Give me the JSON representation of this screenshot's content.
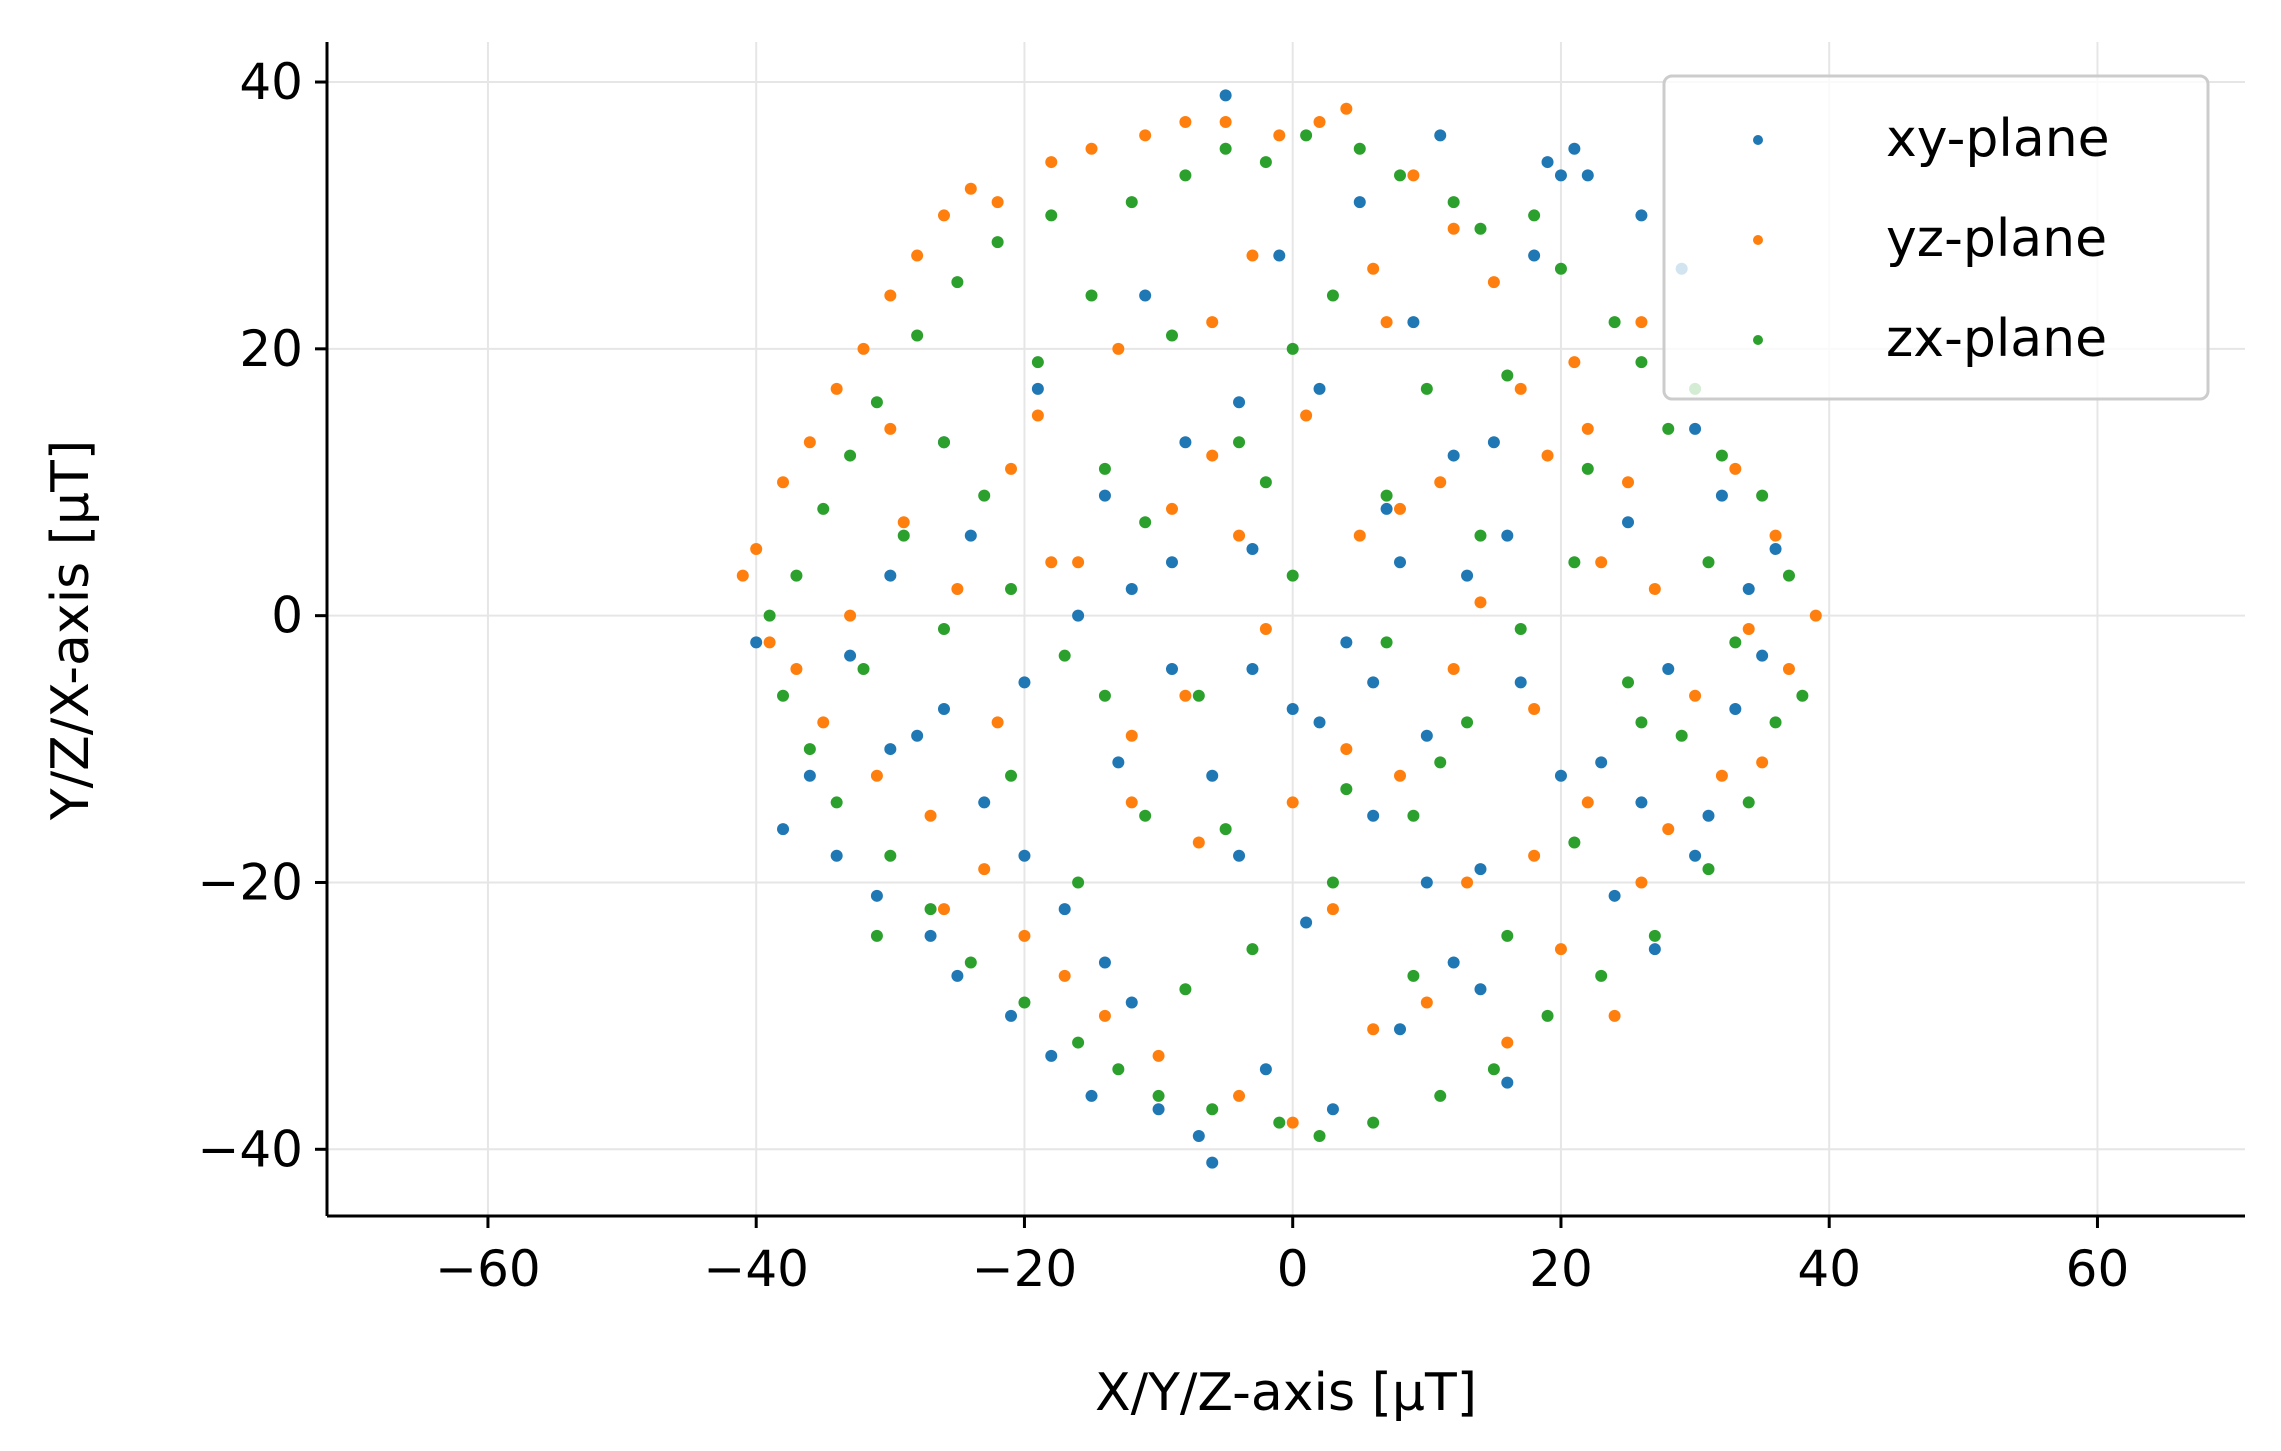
{
  "chart_data": {
    "type": "scatter",
    "title": "",
    "xlabel": "X/Y/Z-axis [μT]",
    "ylabel": "Y/Z/X-axis [μT]",
    "xlim": [
      -72,
      71
    ],
    "ylim": [
      -45,
      43
    ],
    "xticks": [
      -60,
      -40,
      -20,
      0,
      20,
      40,
      60
    ],
    "yticks": [
      -40,
      -20,
      0,
      20,
      40
    ],
    "xtick_labels": [
      "−60",
      "−40",
      "−20",
      "0",
      "20",
      "40",
      "60"
    ],
    "ytick_labels": [
      "−40",
      "−20",
      "0",
      "20",
      "40"
    ],
    "grid": true,
    "legend_position": "top-right",
    "series": [
      {
        "name": "xy-plane",
        "color": "#1f77b4",
        "points": [
          [
            -40,
            -2
          ],
          [
            -38,
            -16
          ],
          [
            -36,
            -12
          ],
          [
            -34,
            -18
          ],
          [
            -33,
            -3
          ],
          [
            -31,
            -21
          ],
          [
            -30,
            3
          ],
          [
            -28,
            -9
          ],
          [
            -27,
            -24
          ],
          [
            -26,
            13
          ],
          [
            -25,
            -27
          ],
          [
            -24,
            6
          ],
          [
            -23,
            -14
          ],
          [
            -21,
            -30
          ],
          [
            -20,
            -5
          ],
          [
            -19,
            17
          ],
          [
            -18,
            -33
          ],
          [
            -17,
            -22
          ],
          [
            -16,
            0
          ],
          [
            -15,
            -36
          ],
          [
            -14,
            9
          ],
          [
            -13,
            -11
          ],
          [
            -12,
            -29
          ],
          [
            -11,
            24
          ],
          [
            -10,
            -37
          ],
          [
            -9,
            -4
          ],
          [
            -8,
            13
          ],
          [
            -7,
            -39
          ],
          [
            -6,
            -41
          ],
          [
            -5,
            39
          ],
          [
            -4,
            -18
          ],
          [
            -3,
            5
          ],
          [
            -2,
            -34
          ],
          [
            -1,
            27
          ],
          [
            0,
            -7
          ],
          [
            1,
            -23
          ],
          [
            2,
            17
          ],
          [
            3,
            -37
          ],
          [
            4,
            -2
          ],
          [
            5,
            31
          ],
          [
            6,
            -15
          ],
          [
            7,
            8
          ],
          [
            8,
            -31
          ],
          [
            9,
            22
          ],
          [
            10,
            -9
          ],
          [
            11,
            36
          ],
          [
            12,
            -26
          ],
          [
            13,
            3
          ],
          [
            14,
            -19
          ],
          [
            15,
            13
          ],
          [
            16,
            -35
          ],
          [
            17,
            -5
          ],
          [
            18,
            27
          ],
          [
            19,
            34
          ],
          [
            20,
            33
          ],
          [
            21,
            35
          ],
          [
            22,
            33
          ],
          [
            23,
            -11
          ],
          [
            24,
            -21
          ],
          [
            25,
            7
          ],
          [
            26,
            30
          ],
          [
            27,
            -25
          ],
          [
            28,
            -4
          ],
          [
            29,
            26
          ],
          [
            30,
            14
          ],
          [
            31,
            -15
          ],
          [
            32,
            9
          ],
          [
            33,
            -7
          ],
          [
            34,
            2
          ],
          [
            35,
            -3
          ],
          [
            36,
            5
          ],
          [
            -6,
            -12
          ],
          [
            -3,
            -4
          ],
          [
            2,
            -8
          ],
          [
            6,
            -5
          ],
          [
            -9,
            4
          ],
          [
            10,
            -20
          ],
          [
            -14,
            -26
          ],
          [
            14,
            -28
          ],
          [
            -20,
            -18
          ],
          [
            20,
            -12
          ],
          [
            -26,
            -7
          ],
          [
            26,
            -14
          ],
          [
            -30,
            -10
          ],
          [
            30,
            -18
          ],
          [
            8,
            4
          ],
          [
            -4,
            16
          ],
          [
            12,
            12
          ],
          [
            -12,
            2
          ],
          [
            16,
            6
          ]
        ]
      },
      {
        "name": "yz-plane",
        "color": "#ff7f0e",
        "points": [
          [
            -41,
            3
          ],
          [
            -40,
            5
          ],
          [
            -39,
            -2
          ],
          [
            -38,
            10
          ],
          [
            -37,
            -4
          ],
          [
            -36,
            13
          ],
          [
            -35,
            -8
          ],
          [
            -34,
            17
          ],
          [
            -33,
            0
          ],
          [
            -32,
            20
          ],
          [
            -31,
            -12
          ],
          [
            -30,
            24
          ],
          [
            -29,
            7
          ],
          [
            -28,
            27
          ],
          [
            -27,
            -15
          ],
          [
            -26,
            30
          ],
          [
            -25,
            2
          ],
          [
            -24,
            32
          ],
          [
            -23,
            -19
          ],
          [
            -22,
            31
          ],
          [
            -21,
            11
          ],
          [
            -20,
            -24
          ],
          [
            -19,
            15
          ],
          [
            -18,
            34
          ],
          [
            -17,
            -27
          ],
          [
            -16,
            4
          ],
          [
            -15,
            35
          ],
          [
            -14,
            -30
          ],
          [
            -13,
            20
          ],
          [
            -12,
            -9
          ],
          [
            -11,
            36
          ],
          [
            -10,
            -33
          ],
          [
            -9,
            8
          ],
          [
            -8,
            37
          ],
          [
            -7,
            -17
          ],
          [
            -6,
            12
          ],
          [
            -5,
            37
          ],
          [
            -4,
            -36
          ],
          [
            -3,
            27
          ],
          [
            -2,
            -1
          ],
          [
            -1,
            36
          ],
          [
            0,
            -38
          ],
          [
            1,
            15
          ],
          [
            2,
            37
          ],
          [
            3,
            -22
          ],
          [
            4,
            38
          ],
          [
            5,
            6
          ],
          [
            6,
            -31
          ],
          [
            7,
            22
          ],
          [
            8,
            -12
          ],
          [
            9,
            33
          ],
          [
            10,
            -29
          ],
          [
            11,
            10
          ],
          [
            12,
            29
          ],
          [
            13,
            -20
          ],
          [
            14,
            1
          ],
          [
            15,
            25
          ],
          [
            16,
            -32
          ],
          [
            17,
            17
          ],
          [
            18,
            -7
          ],
          [
            19,
            12
          ],
          [
            20,
            -25
          ],
          [
            21,
            19
          ],
          [
            22,
            -14
          ],
          [
            23,
            4
          ],
          [
            24,
            -30
          ],
          [
            25,
            10
          ],
          [
            26,
            -20
          ],
          [
            27,
            2
          ],
          [
            28,
            -16
          ],
          [
            30,
            -6
          ],
          [
            32,
            -12
          ],
          [
            34,
            -1
          ],
          [
            36,
            6
          ],
          [
            37,
            -4
          ],
          [
            39,
            0
          ],
          [
            33,
            11
          ],
          [
            35,
            -11
          ],
          [
            -8,
            -6
          ],
          [
            -4,
            6
          ],
          [
            4,
            -10
          ],
          [
            8,
            8
          ],
          [
            -12,
            -14
          ],
          [
            12,
            -4
          ],
          [
            -18,
            4
          ],
          [
            18,
            -18
          ],
          [
            -22,
            -8
          ],
          [
            22,
            14
          ],
          [
            -26,
            -22
          ],
          [
            26,
            22
          ],
          [
            -30,
            14
          ],
          [
            -6,
            22
          ],
          [
            6,
            26
          ],
          [
            0,
            -14
          ]
        ]
      },
      {
        "name": "zx-plane",
        "color": "#2ca02c",
        "points": [
          [
            -39,
            0
          ],
          [
            -38,
            -6
          ],
          [
            -37,
            3
          ],
          [
            -36,
            -10
          ],
          [
            -35,
            8
          ],
          [
            -34,
            -14
          ],
          [
            -33,
            12
          ],
          [
            -32,
            -4
          ],
          [
            -31,
            16
          ],
          [
            -30,
            -18
          ],
          [
            -29,
            6
          ],
          [
            -28,
            21
          ],
          [
            -27,
            -22
          ],
          [
            -26,
            -1
          ],
          [
            -25,
            25
          ],
          [
            -24,
            -26
          ],
          [
            -23,
            9
          ],
          [
            -22,
            28
          ],
          [
            -21,
            -12
          ],
          [
            -20,
            -29
          ],
          [
            -19,
            19
          ],
          [
            -18,
            30
          ],
          [
            -17,
            -3
          ],
          [
            -16,
            -32
          ],
          [
            -15,
            24
          ],
          [
            -14,
            11
          ],
          [
            -13,
            -34
          ],
          [
            -12,
            31
          ],
          [
            -11,
            -15
          ],
          [
            -10,
            -36
          ],
          [
            -9,
            21
          ],
          [
            -8,
            33
          ],
          [
            -7,
            -6
          ],
          [
            -6,
            -37
          ],
          [
            -5,
            35
          ],
          [
            -4,
            13
          ],
          [
            -3,
            -25
          ],
          [
            -2,
            34
          ],
          [
            -1,
            -38
          ],
          [
            0,
            3
          ],
          [
            1,
            36
          ],
          [
            2,
            -39
          ],
          [
            3,
            24
          ],
          [
            4,
            -13
          ],
          [
            5,
            35
          ],
          [
            6,
            -38
          ],
          [
            7,
            9
          ],
          [
            8,
            33
          ],
          [
            9,
            -27
          ],
          [
            10,
            17
          ],
          [
            11,
            -36
          ],
          [
            12,
            31
          ],
          [
            13,
            -8
          ],
          [
            14,
            29
          ],
          [
            15,
            -34
          ],
          [
            16,
            18
          ],
          [
            17,
            -1
          ],
          [
            18,
            30
          ],
          [
            19,
            -30
          ],
          [
            20,
            26
          ],
          [
            21,
            -17
          ],
          [
            22,
            11
          ],
          [
            23,
            -27
          ],
          [
            24,
            22
          ],
          [
            25,
            -5
          ],
          [
            26,
            19
          ],
          [
            27,
            -24
          ],
          [
            28,
            14
          ],
          [
            29,
            -9
          ],
          [
            30,
            17
          ],
          [
            31,
            -19
          ],
          [
            32,
            12
          ],
          [
            33,
            -2
          ],
          [
            34,
            -14
          ],
          [
            35,
            9
          ],
          [
            36,
            -8
          ],
          [
            37,
            3
          ],
          [
            38,
            -6
          ],
          [
            -5,
            -16
          ],
          [
            -2,
            10
          ],
          [
            3,
            -20
          ],
          [
            7,
            -2
          ],
          [
            -11,
            7
          ],
          [
            11,
            -11
          ],
          [
            -16,
            -20
          ],
          [
            16,
            -24
          ],
          [
            -21,
            2
          ],
          [
            21,
            4
          ],
          [
            -26,
            13
          ],
          [
            26,
            -8
          ],
          [
            -31,
            -24
          ],
          [
            31,
            4
          ],
          [
            0,
            20
          ],
          [
            -8,
            -28
          ],
          [
            9,
            -15
          ],
          [
            14,
            6
          ],
          [
            -14,
            -6
          ]
        ]
      }
    ]
  }
}
